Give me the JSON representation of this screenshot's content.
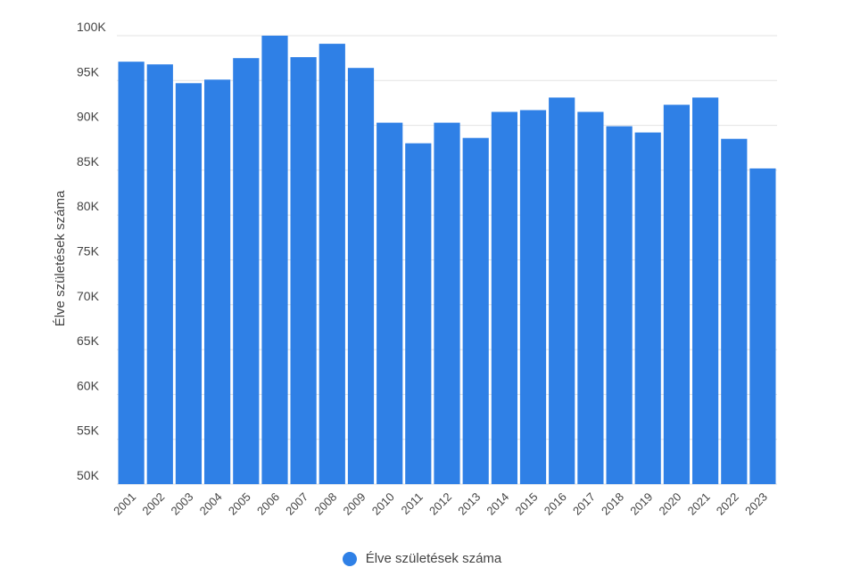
{
  "chart_data": {
    "type": "bar",
    "title": "",
    "xlabel": "",
    "ylabel": "Élve születések száma",
    "ylim": [
      50000,
      100000
    ],
    "yticks": [
      50000,
      55000,
      60000,
      65000,
      70000,
      75000,
      80000,
      85000,
      90000,
      95000,
      100000
    ],
    "ytick_labels": [
      "50K",
      "55K",
      "60K",
      "65K",
      "70K",
      "75K",
      "80K",
      "85K",
      "90K",
      "95K",
      "100K"
    ],
    "grid": true,
    "legend_position": "bottom",
    "categories": [
      "2001",
      "2002",
      "2003",
      "2004",
      "2005",
      "2006",
      "2007",
      "2008",
      "2009",
      "2010",
      "2011",
      "2012",
      "2013",
      "2014",
      "2015",
      "2016",
      "2017",
      "2018",
      "2019",
      "2020",
      "2021",
      "2022",
      "2023"
    ],
    "series": [
      {
        "name": "Élve születések száma",
        "color": "#2f80e6",
        "values": [
          97100,
          96800,
          94700,
          95100,
          97500,
          100000,
          97600,
          99100,
          96400,
          90300,
          88000,
          90300,
          88600,
          91500,
          91700,
          93100,
          91500,
          89900,
          89200,
          92300,
          93100,
          88500,
          85200
        ]
      }
    ]
  }
}
